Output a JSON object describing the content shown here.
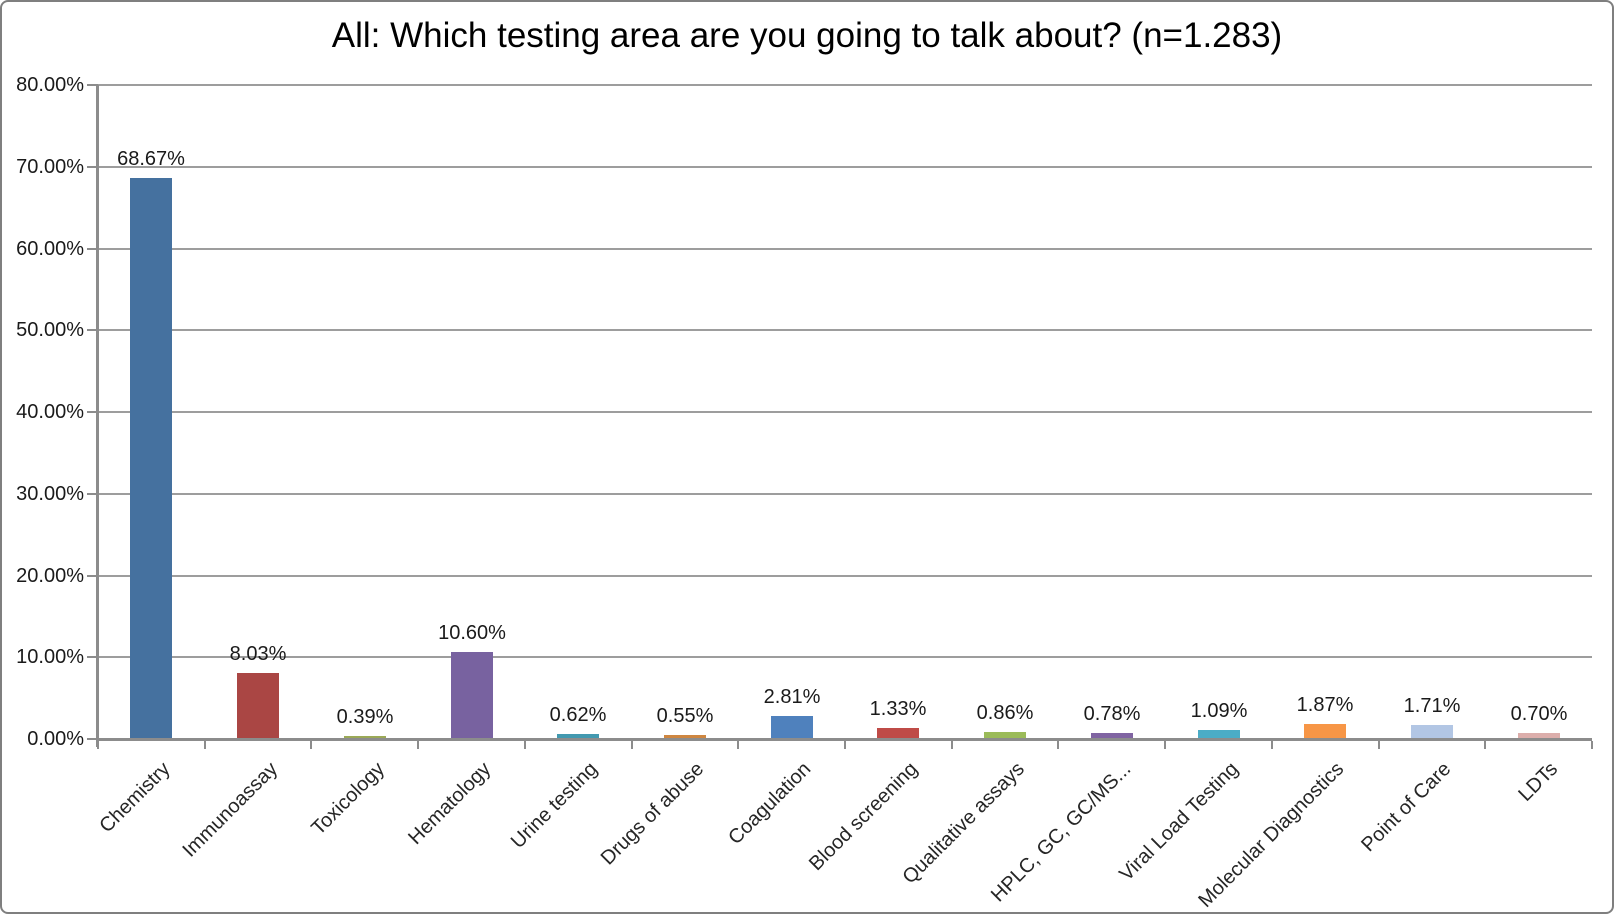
{
  "title": "All: Which testing area are you going to talk about? (n=1.283)",
  "chart_data": {
    "type": "bar",
    "title": "All: Which testing area are you going to talk about? (n=1.283)",
    "xlabel": "",
    "ylabel": "",
    "ylim": [
      0,
      80
    ],
    "ytick_step": 10,
    "ytick_labels": [
      "0.00%",
      "10.00%",
      "20.00%",
      "30.00%",
      "40.00%",
      "50.00%",
      "60.00%",
      "70.00%",
      "80.00%"
    ],
    "grid": true,
    "legend": "none",
    "categories": [
      "Chemistry",
      "Immunoassay",
      "Toxicology",
      "Hematology",
      "Urine testing",
      "Drugs of abuse",
      "Coagulation",
      "Blood screening",
      "Qualitative assays",
      "HPLC, GC, GC/MS...",
      "Viral Load Testing",
      "Molecular Diagnostics",
      "Point of Care",
      "LDTs"
    ],
    "values": [
      68.67,
      8.03,
      0.39,
      10.6,
      0.62,
      0.55,
      2.81,
      1.33,
      0.86,
      0.78,
      1.09,
      1.87,
      1.71,
      0.7
    ],
    "value_labels": [
      "68.67%",
      "8.03%",
      "0.39%",
      "10.60%",
      "0.62%",
      "0.55%",
      "2.81%",
      "1.33%",
      "0.86%",
      "0.78%",
      "1.09%",
      "1.87%",
      "1.71%",
      "0.70%"
    ],
    "bar_colors": [
      "#45719F",
      "#AA4644",
      "#9BA957",
      "#7862A0",
      "#4299B0",
      "#CE8640",
      "#4F81BD",
      "#BF4B47",
      "#9BBB59",
      "#8064A2",
      "#4BACC6",
      "#F79646",
      "#B2C6E4",
      "#DCAEAB"
    ],
    "gridline_color": "#9d9d9d",
    "axis_color": "#8c8c8c"
  }
}
